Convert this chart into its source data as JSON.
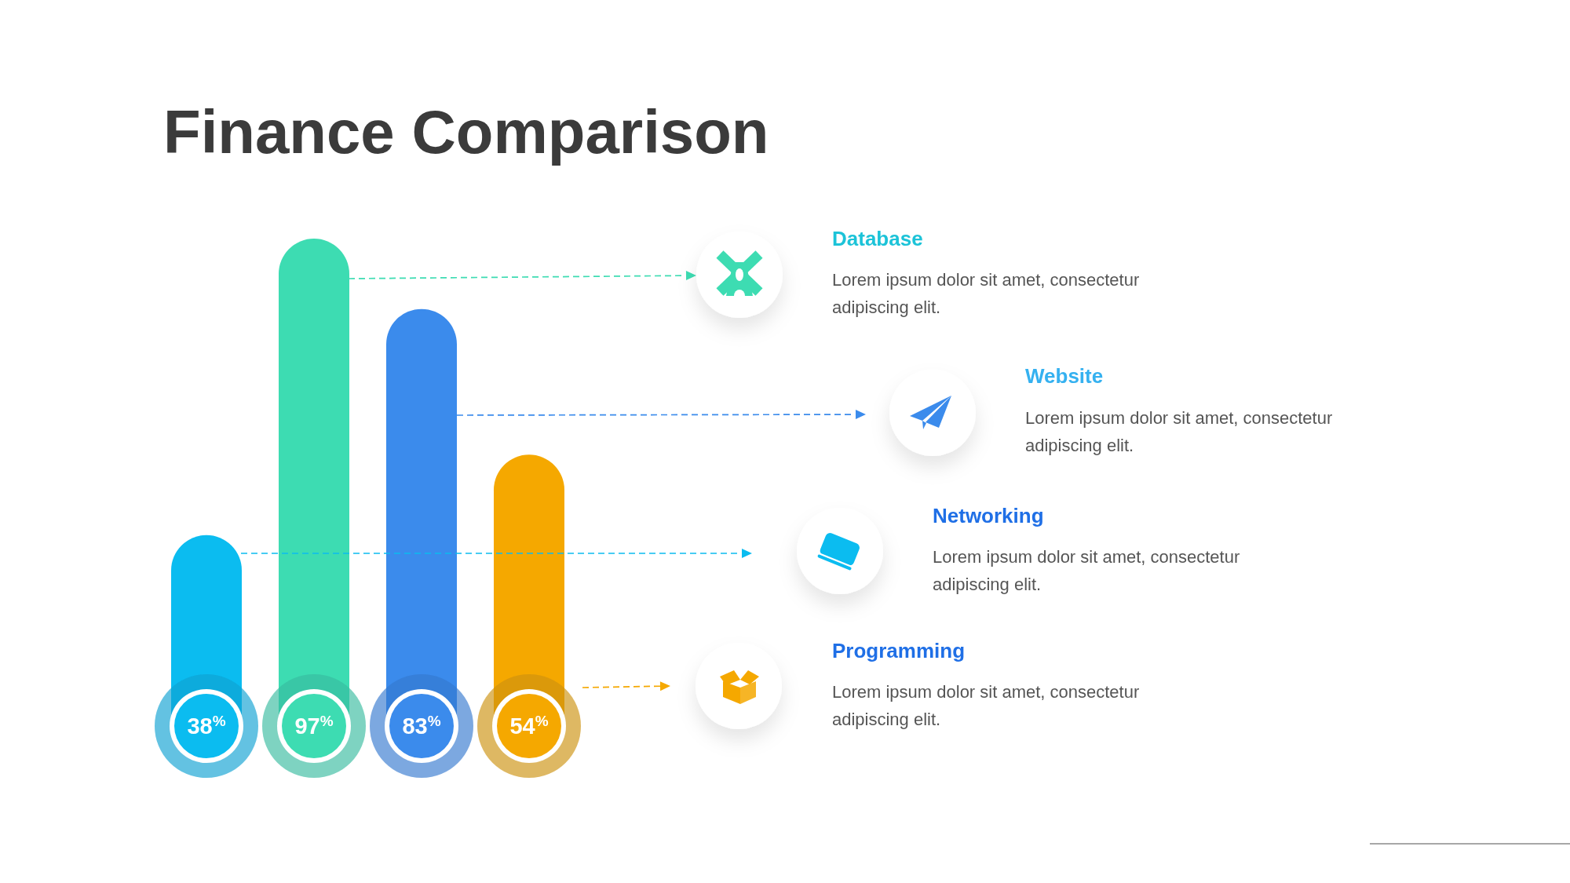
{
  "chart_data": {
    "type": "bar",
    "title": "Finance Comparison",
    "categories": [
      null,
      null,
      null,
      null
    ],
    "values": [
      38,
      97,
      83,
      54
    ],
    "colors": [
      "#0bbcf0",
      "#3ddcb2",
      "#3b8bec",
      "#f5a800"
    ],
    "value_labels": [
      "38$^{%}$",
      "97$^{%}$",
      "83$^{%}$",
      "54$^{%}$"
    ],
    "annotations": [
      "Database",
      "Lorem ipsum dolor sit amet, consectetur adipiscing elit.",
      "Website",
      "Lorem ipsum dolor sit amet, consectetur adipiscing elit.",
      "Networking",
      "Lorem ipsum dolor sit amet, consectetur adipiscing elit.",
      "Programming",
      "Lorem ipsum dolor sit amet, consectetur adipiscing elit."
    ]
  }
}
